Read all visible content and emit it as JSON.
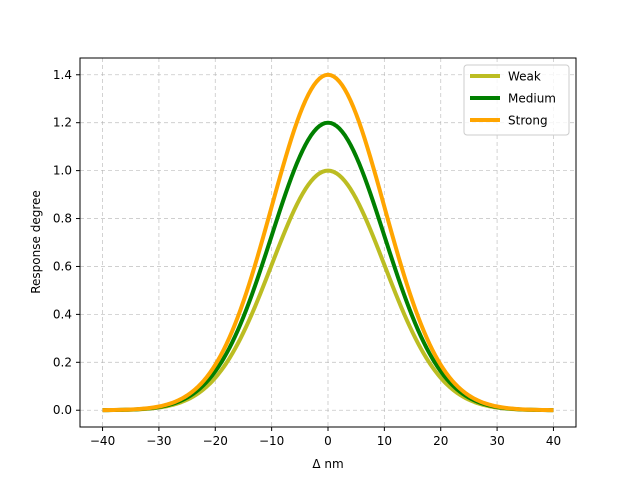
{
  "chart_data": {
    "type": "line",
    "title": "",
    "xlabel": "Δ nm",
    "ylabel": "Response degree",
    "xlim": [
      -44,
      44
    ],
    "ylim": [
      -0.07,
      1.47
    ],
    "x_ticks": [
      -40,
      -30,
      -20,
      -10,
      0,
      10,
      20,
      30,
      40
    ],
    "x_tick_labels": [
      "−40",
      "−30",
      "−20",
      "−10",
      "0",
      "10",
      "20",
      "30",
      "40"
    ],
    "y_ticks": [
      0.0,
      0.2,
      0.4,
      0.6,
      0.8,
      1.0,
      1.2,
      1.4
    ],
    "y_tick_labels": [
      "0.0",
      "0.2",
      "0.4",
      "0.6",
      "0.8",
      "1.0",
      "1.2",
      "1.4"
    ],
    "grid": true,
    "legend_position": "top-right",
    "series": [
      {
        "name": "Weak",
        "color": "#bcbd22",
        "x": [
          -40,
          -35,
          -30,
          -25,
          -20,
          -15,
          -10,
          -5,
          0,
          5,
          10,
          15,
          20,
          25,
          30,
          35,
          40
        ],
        "y": [
          0.0,
          0.004,
          0.011,
          0.044,
          0.135,
          0.325,
          0.607,
          0.882,
          1.0,
          0.882,
          0.607,
          0.325,
          0.135,
          0.044,
          0.011,
          0.004,
          0.0
        ]
      },
      {
        "name": "Medium",
        "color": "#008000",
        "x": [
          -40,
          -35,
          -30,
          -25,
          -20,
          -15,
          -10,
          -5,
          0,
          5,
          10,
          15,
          20,
          25,
          30,
          35,
          40
        ],
        "y": [
          0.0,
          0.004,
          0.013,
          0.053,
          0.162,
          0.39,
          0.728,
          1.059,
          1.2,
          1.059,
          0.728,
          0.39,
          0.162,
          0.053,
          0.013,
          0.004,
          0.0
        ]
      },
      {
        "name": "Strong",
        "color": "#ffa500",
        "x": [
          -40,
          -35,
          -30,
          -25,
          -20,
          -15,
          -10,
          -5,
          0,
          5,
          10,
          15,
          20,
          25,
          30,
          35,
          40
        ],
        "y": [
          0.0,
          0.005,
          0.016,
          0.061,
          0.189,
          0.455,
          0.849,
          1.235,
          1.4,
          1.235,
          0.849,
          0.455,
          0.189,
          0.061,
          0.016,
          0.005,
          0.0
        ]
      }
    ]
  }
}
